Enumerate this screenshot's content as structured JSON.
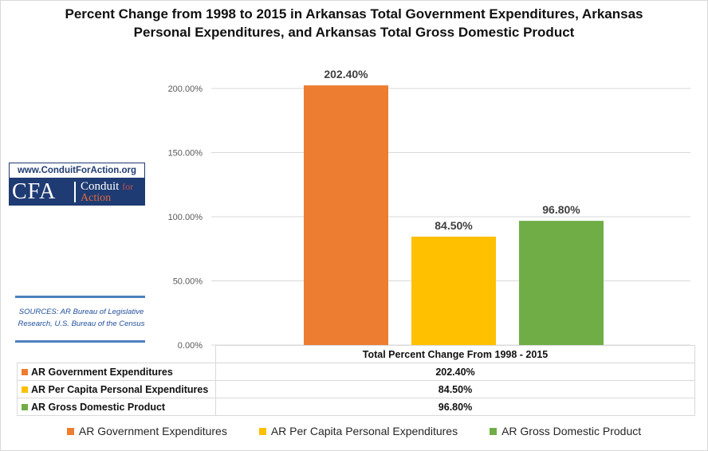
{
  "chart_data": {
    "type": "bar",
    "title_lines": [
      "Percent Change from 1998 to 2015 in Arkansas Total Government Expenditures, Arkansas",
      "Personal Expenditures, and Arkansas Total Gross Domestic Product"
    ],
    "category": "Total Percent Change From 1998 - 2015",
    "ylim": [
      0,
      200
    ],
    "yticks": [
      0,
      50,
      100,
      150,
      200
    ],
    "ytick_labels": [
      "0.00%",
      "50.00%",
      "100.00%",
      "150.00%",
      "200.00%"
    ],
    "grid": true,
    "legend_placement": "bottom",
    "series": [
      {
        "name": "AR Government Expenditures",
        "value": 202.4,
        "label": "202.40%",
        "color": "#ed7d31"
      },
      {
        "name": "AR Per Capita Personal Expenditures",
        "value": 84.5,
        "label": "84.50%",
        "color": "#ffc000"
      },
      {
        "name": "AR Gross Domestic Product",
        "value": 96.8,
        "label": "96.80%",
        "color": "#70ad47"
      }
    ]
  },
  "badge": {
    "url": "www.ConduitForAction.org",
    "abbr": "CFA",
    "line1": "Conduit",
    "line1b": "for",
    "line2": "Action",
    "colors": {
      "navy": "#1f3b73",
      "accent": "#e06b3c"
    }
  },
  "sources": {
    "line1": "SOURCES: AR Bureau of Legislative",
    "line2": "Research, U.S. Bureau of the Census"
  }
}
